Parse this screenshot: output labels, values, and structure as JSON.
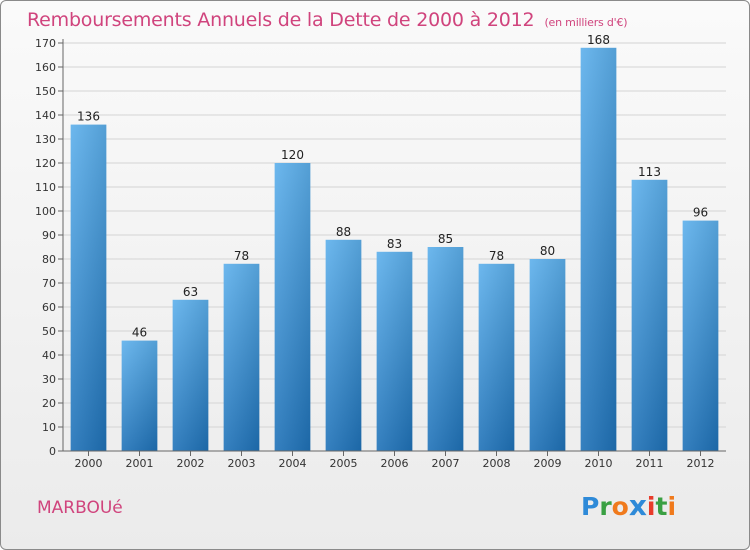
{
  "header": {
    "title": "Remboursements Annuels de la Dette de 2000 à 2012",
    "subtitle": "(en milliers d'€)"
  },
  "footer": {
    "commune": "MARBOUé",
    "logo_letters": [
      {
        "ch": "P",
        "color": "#2e8ad8"
      },
      {
        "ch": "r",
        "color": "#3aa043"
      },
      {
        "ch": "o",
        "color": "#f07a1c"
      },
      {
        "ch": "x",
        "color": "#2e8ad8"
      },
      {
        "ch": "i",
        "color": "#e83b2a"
      },
      {
        "ch": "t",
        "color": "#3aa043"
      },
      {
        "ch": "i",
        "color": "#f07a1c"
      }
    ]
  },
  "colors": {
    "bar_top": "#5db0ec",
    "bar_bottom": "#1f72b8",
    "accent": "#d0447d"
  },
  "chart_data": {
    "type": "bar",
    "title": "Remboursements Annuels de la Dette de 2000 à 2012",
    "subtitle": "(en milliers d'€)",
    "categories": [
      "2000",
      "2001",
      "2002",
      "2003",
      "2004",
      "2005",
      "2006",
      "2007",
      "2008",
      "2009",
      "2010",
      "2011",
      "2012"
    ],
    "values": [
      136,
      46,
      63,
      78,
      120,
      88,
      83,
      85,
      78,
      80,
      168,
      113,
      96
    ],
    "ylim": [
      0,
      170
    ],
    "yticks": [
      0,
      10,
      20,
      30,
      40,
      50,
      60,
      70,
      80,
      90,
      100,
      110,
      120,
      130,
      140,
      150,
      160,
      170
    ],
    "grid": true,
    "data_labels": true
  }
}
